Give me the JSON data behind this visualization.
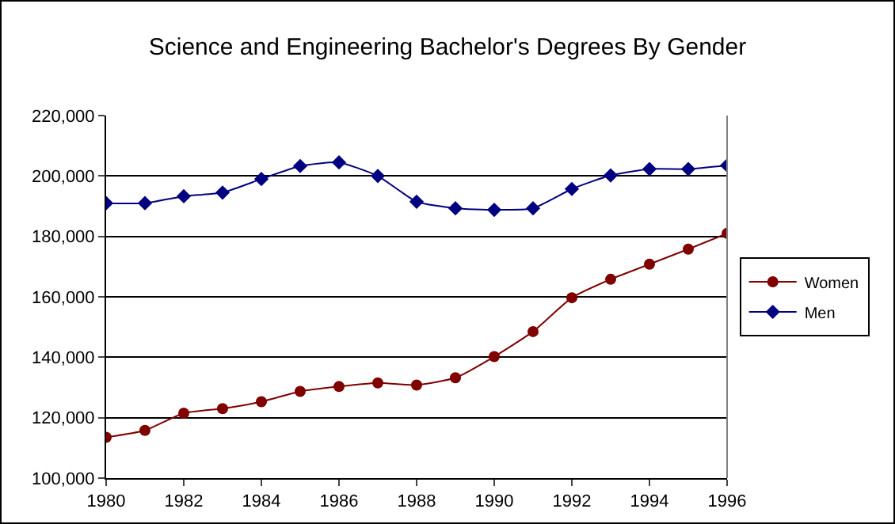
{
  "chart_data": {
    "type": "line",
    "title": "Science and Engineering Bachelor's Degrees By Gender",
    "x": [
      1980,
      1981,
      1982,
      1983,
      1984,
      1985,
      1986,
      1987,
      1988,
      1989,
      1990,
      1991,
      1992,
      1993,
      1994,
      1995,
      1996
    ],
    "series": [
      {
        "name": "Women",
        "color": "#800000",
        "marker": "circle",
        "values": [
          113500,
          115800,
          121500,
          123000,
          125300,
          128700,
          130300,
          131500,
          130800,
          133200,
          140200,
          148500,
          159700,
          165800,
          170800,
          175800,
          181000
        ]
      },
      {
        "name": "Men",
        "color": "#000080",
        "marker": "diamond",
        "values": [
          191000,
          191000,
          193300,
          194500,
          199000,
          203300,
          204500,
          200000,
          191500,
          189300,
          188800,
          189300,
          195700,
          200200,
          202300,
          202300,
          203500
        ]
      }
    ],
    "xlim": [
      1980,
      1996
    ],
    "xticks": [
      1980,
      1982,
      1984,
      1986,
      1988,
      1990,
      1992,
      1994,
      1996
    ],
    "ylim": [
      100000,
      220000
    ],
    "yticks": [
      {
        "value": 100000,
        "label": "100,000"
      },
      {
        "value": 120000,
        "label": "120,000"
      },
      {
        "value": 140000,
        "label": "140,000"
      },
      {
        "value": 160000,
        "label": "160,000"
      },
      {
        "value": 180000,
        "label": "180,000"
      },
      {
        "value": 200000,
        "label": "200,000"
      },
      {
        "value": 220000,
        "label": "220,000"
      }
    ],
    "grid": "y",
    "legend": "right",
    "line_style": "solid"
  }
}
